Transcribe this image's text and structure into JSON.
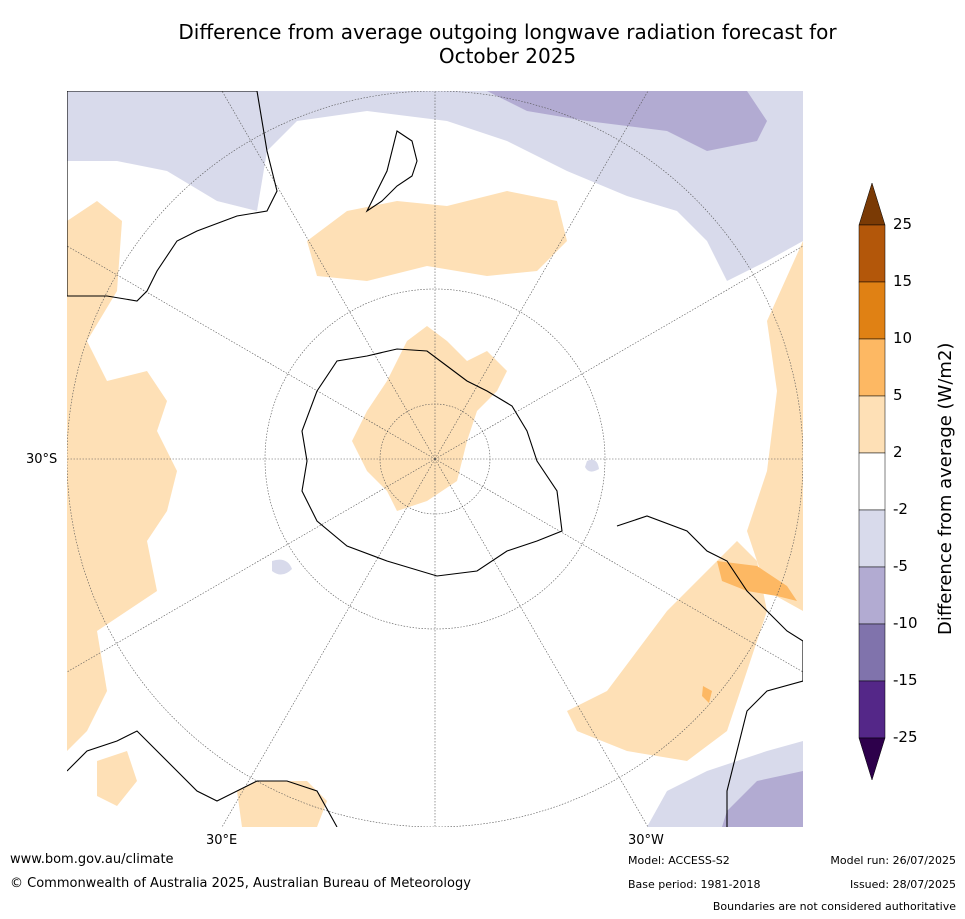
{
  "title": "Difference from average outgoing longwave radiation forecast for October 2025",
  "title_line1": "Difference from average outgoing longwave radiation forecast for",
  "title_line2": "October 2025",
  "map_labels": {
    "lat_label": "30°S",
    "lon_label_east": "30°E",
    "lon_label_west": "30°W"
  },
  "colorbar": {
    "title": "Difference from average (W/m2)",
    "ticks": [
      "25",
      "15",
      "10",
      "5",
      "2",
      "-2",
      "-5",
      "-10",
      "-15",
      "-25"
    ],
    "colors": {
      "gt25": "#7a3a05",
      "15_25": "#b3570a",
      "10_15": "#e08114",
      "5_10": "#fdb863",
      "2_5": "#fee0b6",
      "m2_2": "#ffffff",
      "m5_m2": "#d8daeb",
      "m10_m5": "#b2abd2",
      "m15_m10": "#8073ac",
      "m25_m15": "#542788",
      "ltm25": "#2d004b"
    }
  },
  "footer": {
    "website": "www.bom.gov.au/climate",
    "copyright": "© Commonwealth of Australia 2025, Australian Bureau of Meteorology",
    "model": "Model: ACCESS-S2",
    "base_period": "Base period: 1981-2018",
    "model_run": "Model run: 26/07/2025",
    "issued": "Issued: 28/07/2025",
    "disclaimer": "Boundaries are not considered authoritative"
  }
}
